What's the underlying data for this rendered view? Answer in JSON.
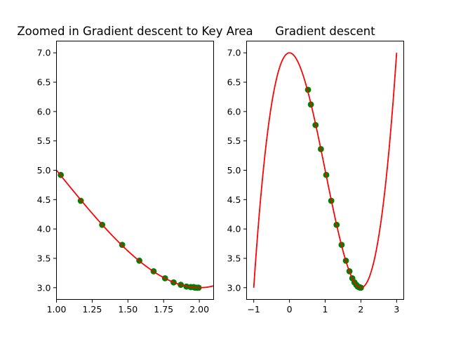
{
  "chart_data": [
    {
      "type": "line",
      "title": "Zoomed in Gradient descent to Key Area",
      "xlabel": "",
      "ylabel": "",
      "xlim": [
        1.0,
        2.1
      ],
      "ylim": [
        2.8,
        7.2
      ],
      "xticks": [
        "1.00",
        "1.25",
        "1.50",
        "1.75",
        "2.00"
      ],
      "yticks": [
        "3.0",
        "3.5",
        "4.0",
        "4.5",
        "5.0",
        "5.5",
        "6.0",
        "6.5",
        "7.0"
      ],
      "grid": false,
      "curve": {
        "function": "f(x) = x^3 - 3x^2 + 7",
        "x_range": [
          0.95,
          2.1
        ],
        "color": "#ff0000"
      },
      "scatter": {
        "color": "#008000",
        "x": [
          1.03,
          1.17,
          1.32,
          1.46,
          1.58,
          1.68,
          1.76,
          1.82,
          1.87,
          1.91,
          1.94,
          1.96,
          1.97,
          1.98,
          1.99,
          1.995
        ],
        "y": [
          4.92,
          4.48,
          4.07,
          3.73,
          3.46,
          3.28,
          3.16,
          3.09,
          3.05,
          3.02,
          3.01,
          3.01,
          3.0,
          3.0,
          3.0,
          3.0
        ]
      }
    },
    {
      "type": "line",
      "title": "Gradient descent",
      "xlabel": "",
      "ylabel": "",
      "xlim": [
        -1.2,
        3.2
      ],
      "ylim": [
        2.8,
        7.2
      ],
      "xticks": [
        "−1",
        "0",
        "1",
        "2",
        "3"
      ],
      "yticks": [
        "3.0",
        "3.5",
        "4.0",
        "4.5",
        "5.0",
        "5.5",
        "6.0",
        "6.5",
        "7.0"
      ],
      "grid": false,
      "curve": {
        "function": "f(x) = x^3 - 3x^2 + 7",
        "x_range": [
          -1.0,
          3.0
        ],
        "color": "#ff0000"
      },
      "scatter": {
        "color": "#008000",
        "x": [
          0.52,
          0.6,
          0.73,
          0.88,
          1.03,
          1.17,
          1.32,
          1.46,
          1.58,
          1.68,
          1.76,
          1.82,
          1.87,
          1.91,
          1.94,
          1.96,
          1.98,
          1.99,
          2.0
        ],
        "y": [
          6.37,
          6.12,
          5.77,
          5.36,
          4.92,
          4.48,
          4.07,
          3.73,
          3.46,
          3.28,
          3.16,
          3.09,
          3.05,
          3.02,
          3.01,
          3.01,
          3.0,
          3.0,
          3.0
        ]
      }
    }
  ]
}
